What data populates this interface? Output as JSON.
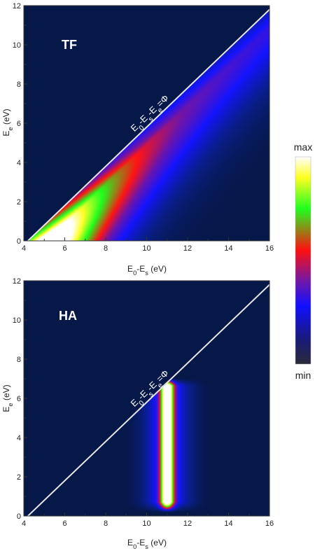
{
  "chart_data": [
    {
      "type": "heatmap",
      "panel_label": "TF",
      "xlabel": "E<sub>0</sub>-E<sub>s</sub> (eV)",
      "ylabel": "E<sub>e</sub> (eV)",
      "xlim": [
        4,
        16
      ],
      "ylim": [
        0,
        12
      ],
      "xticks": [
        4,
        6,
        8,
        10,
        12,
        14,
        16
      ],
      "yticks": [
        0,
        2,
        4,
        6,
        8,
        10,
        12
      ],
      "diagonal_line": {
        "from": [
          4.2,
          0
        ],
        "to": [
          16.2,
          12
        ]
      },
      "annotation": "E<sub>0</sub>-E<sub>s</sub>-E<sub>e</sub>=Φ",
      "model": "band_below_line",
      "band_peak_offset_ev": 0.9,
      "decay_scale_ev": 2.6
    },
    {
      "type": "heatmap",
      "panel_label": "HA",
      "xlabel": "E<sub>0</sub>-E<sub>s</sub> (eV)",
      "ylabel": "E<sub>e</sub> (eV)",
      "xlim": [
        4,
        16
      ],
      "ylim": [
        0,
        12
      ],
      "xticks": [
        4,
        6,
        8,
        10,
        12,
        14,
        16
      ],
      "yticks": [
        0,
        2,
        4,
        6,
        8,
        10,
        12
      ],
      "diagonal_line": {
        "from": [
          4.2,
          0
        ],
        "to": [
          16.2,
          12
        ]
      },
      "annotation": "E<sub>0</sub>-E<sub>s</sub>-E<sub>e</sub>=Φ",
      "model": "vertical_peak",
      "peak_x_ev": 11.0,
      "peak_width_ev": 0.22,
      "peak_y_range_ev": [
        0.2,
        7.0
      ]
    }
  ],
  "colorbar": {
    "max_label": "max",
    "min_label": "min"
  },
  "colors": {
    "background": "#061848",
    "line": "#e6e6e6"
  }
}
